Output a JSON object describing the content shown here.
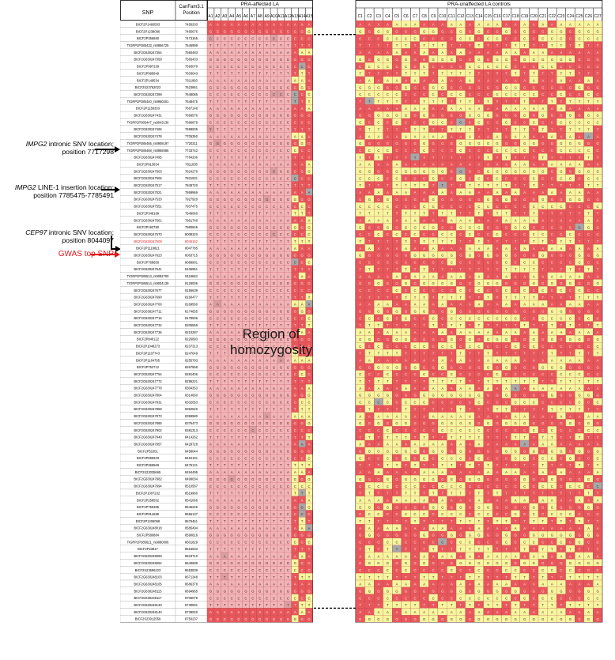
{
  "headers": {
    "snp": "SNP",
    "position_line1": "CanFam3.1",
    "position_line2": "Position",
    "affected_group": "PRA-affected LA",
    "controls_group": "PRA-unaffected LA controls"
  },
  "affected_columns": [
    "A1",
    "A2",
    "A3",
    "A4",
    "A5",
    "A6",
    "A7",
    "A8",
    "A9",
    "A10",
    "A11",
    "A12",
    "A13",
    "A14",
    "A15"
  ],
  "control_columns": [
    "C1",
    "C2",
    "C3",
    "C4",
    "C5",
    "C6",
    "C7",
    "C8",
    "C9",
    "C10",
    "C11",
    "C12",
    "C13",
    "C14",
    "C15",
    "C16",
    "C17",
    "C18",
    "C19",
    "C20",
    "C21",
    "C22",
    "C23",
    "C24",
    "C25",
    "C26",
    "C27"
  ],
  "asterisks": {
    "A14": "*",
    "A15": "*",
    "C10": "*"
  },
  "region_label": "Region of homozygosity",
  "annotations": [
    {
      "gene": "IMPG2",
      "text": " intronic SNV location;",
      "line2": "position 7717298"
    },
    {
      "gene": "IMPG2",
      "text": " LINE-1 insertion location;",
      "line2": "position 7785475-7785491"
    },
    {
      "gene": "CEP97",
      "text": " intronic SNV location;",
      "line2": "position 8044097"
    }
  ],
  "gwas_label": "GWAS top SNP",
  "colors": {
    "homozygous": "#e8575b",
    "heterozygous": "#f7f59e",
    "region": "#f2b5b7",
    "missing": "#a8a8a8",
    "gwas": "#e0161a"
  },
  "rows": [
    [
      "BICF2P1460503",
      "7450203"
    ],
    [
      "BICF2P1238096",
      "7465676"
    ],
    [
      "BICF2P356680",
      "7473165"
    ],
    [
      "TIGRP2P385433_rs8956725",
      "7546999"
    ],
    [
      "BICF2G630247354",
      "7560483"
    ],
    [
      "BICF2G630247359",
      "7565433"
    ],
    [
      "BICF2P997239",
      "7593070"
    ],
    [
      "BICF2P995849",
      "7603043"
    ],
    [
      "BICF2P149534",
      "7611993"
    ],
    [
      "BICF2S23762023",
      "7623861"
    ],
    [
      "BICF2G630247399",
      "7648085"
    ],
    [
      "TIGRP2P385440_rs8960201",
      "7648475"
    ],
    [
      "BICF2P1156333",
      "7667148"
    ],
    [
      "BICF2G630247431",
      "7668576"
    ],
    [
      "TIGRP2P385447_rs9043136",
      "7686879"
    ],
    [
      "BICF2G630247465",
      "7698935"
    ],
    [
      "BICF2G630247478",
      "7705350"
    ],
    [
      "TIGRP2P385465_rs8908197",
      "7720211"
    ],
    [
      "TIGRP2P385468_rs8958086",
      "7733742"
    ],
    [
      "BICF2G630247495",
      "7784206"
    ],
    [
      "BICF2P913834",
      "7811638"
    ],
    [
      "BICF2G630247503",
      "7824270"
    ],
    [
      "BICF2G630247506",
      "7831931"
    ],
    [
      "BICF2G630247517",
      "7848720"
    ],
    [
      "BICF2G630247521",
      "7869969"
    ],
    [
      "BICF2G630247533",
      "7927920"
    ],
    [
      "BICF2G630247551",
      "7937475"
    ],
    [
      "BICF2P348189",
      "7949060"
    ],
    [
      "BICF2G630247561",
      "7961740"
    ],
    [
      "BICF2P193780",
      "7980845"
    ],
    [
      "BICF2G630247570",
      "8008320"
    ],
    [
      "BICF2G630247609",
      "8045162"
    ],
    [
      "BICF2P1118821",
      "8047785"
    ],
    [
      "BICF2G630247623",
      "8063715"
    ],
    [
      "BICF2P768650",
      "8089901"
    ],
    [
      "BICF2G630247641",
      "8106961"
    ],
    [
      "TIGRP2P385513_rs9092700",
      "8119663"
    ],
    [
      "TIGRP2P385514_rs9004139",
      "8128006"
    ],
    [
      "BICF2G630247677",
      "8155639"
    ],
    [
      "BICF2G630247690",
      "8160477"
    ],
    [
      "BICF2G630247700",
      "8169560"
    ],
    [
      "BICF2G630247711",
      "8174655"
    ],
    [
      "BICF2G630247716",
      "8178936"
    ],
    [
      "BICF2G630247732",
      "8205559"
    ],
    [
      "BICF2G630247736",
      "8210287"
    ],
    [
      "BICF2P840122",
      "8226893"
    ],
    [
      "BICF2P1048273",
      "8237313"
    ],
    [
      "BICF2P1107743",
      "8247649"
    ],
    [
      "BICF2P1164795",
      "8255793"
    ],
    [
      "BICF2P752712",
      "8267558"
    ],
    [
      "BICF2G630247754",
      "8281406"
    ],
    [
      "BICF2G630247772",
      "8295221"
    ],
    [
      "BICF2G630247778",
      "8304353"
    ],
    [
      "BICF2G630247804",
      "8314660"
    ],
    [
      "BICF2G630247831",
      "8332053"
    ],
    [
      "BICF2G630247858",
      "8352520"
    ],
    [
      "BICF2G630247873",
      "8359980"
    ],
    [
      "BICF2G630247885",
      "8376473"
    ],
    [
      "BICF2G630247902",
      "8381313"
    ],
    [
      "BICF2G630247940",
      "8414262"
    ],
    [
      "BICF2G630247957",
      "8429728"
    ],
    [
      "BICF2P51051",
      "8458044"
    ],
    [
      "BICF2P895933",
      "8462191"
    ],
    [
      "BICF2P366569",
      "8476131"
    ],
    [
      "BICF2S23035665",
      "8494495"
    ],
    [
      "BICF2G630247982",
      "8499034"
    ],
    [
      "BICF2G630247994",
      "8510587"
    ],
    [
      "BICF2P1007232",
      "8519960"
    ],
    [
      "BICF2P258552",
      "8541066"
    ],
    [
      "BICF2P755385",
      "8545246"
    ],
    [
      "BICF2P814688",
      "8556137"
    ],
    [
      "BICF2P1206058",
      "8576461"
    ],
    [
      "BICF2G630248018",
      "8585494"
    ],
    [
      "BICF2P580884",
      "8590816"
    ],
    [
      "TIGRP2P385621_rs9080006",
      "8601829"
    ],
    [
      "BICF2P23817",
      "8615633"
    ],
    [
      "BICF2G630248069",
      "8623710"
    ],
    [
      "BICF2G630248094",
      "8640689"
    ],
    [
      "BICF2S23596223",
      "8653839"
    ],
    [
      "BICF2G630248103",
      "8671348"
    ],
    [
      "BICF2G630248105",
      "8686378"
    ],
    [
      "BICF2G630248115",
      "8694965"
    ],
    [
      "BICF2G630248117",
      "8706079"
    ],
    [
      "BICF2G630248120",
      "8730591"
    ],
    [
      "BICF2G630248140",
      "8738020"
    ],
    [
      "BICF2S23012559",
      "8750237"
    ]
  ]
}
